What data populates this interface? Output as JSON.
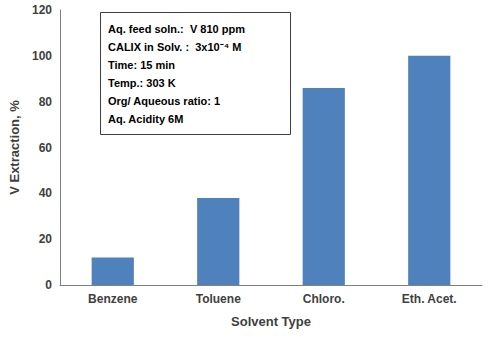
{
  "chart_data": {
    "type": "bar",
    "x_label": "Solvent Type",
    "y_label": "V Extraction, %",
    "categories": [
      "Benzene",
      "Toluene",
      "Chloro.",
      "Eth. Acet."
    ],
    "values": [
      12,
      38,
      86,
      100
    ],
    "color": "#4f81bd",
    "ylim": [
      0,
      120
    ],
    "yticks": [
      0,
      20,
      40,
      60,
      80,
      100,
      120
    ],
    "grid": false,
    "annotations": [
      "Aq. feed soln.:  V 810 ppm",
      "CALIX in Solv. :  3x10⁻⁴ M",
      "Time: 15 min",
      "Temp.: 303 K",
      "Org/ Aqueous ratio: 1",
      "Aq. Acidity 6M"
    ]
  }
}
